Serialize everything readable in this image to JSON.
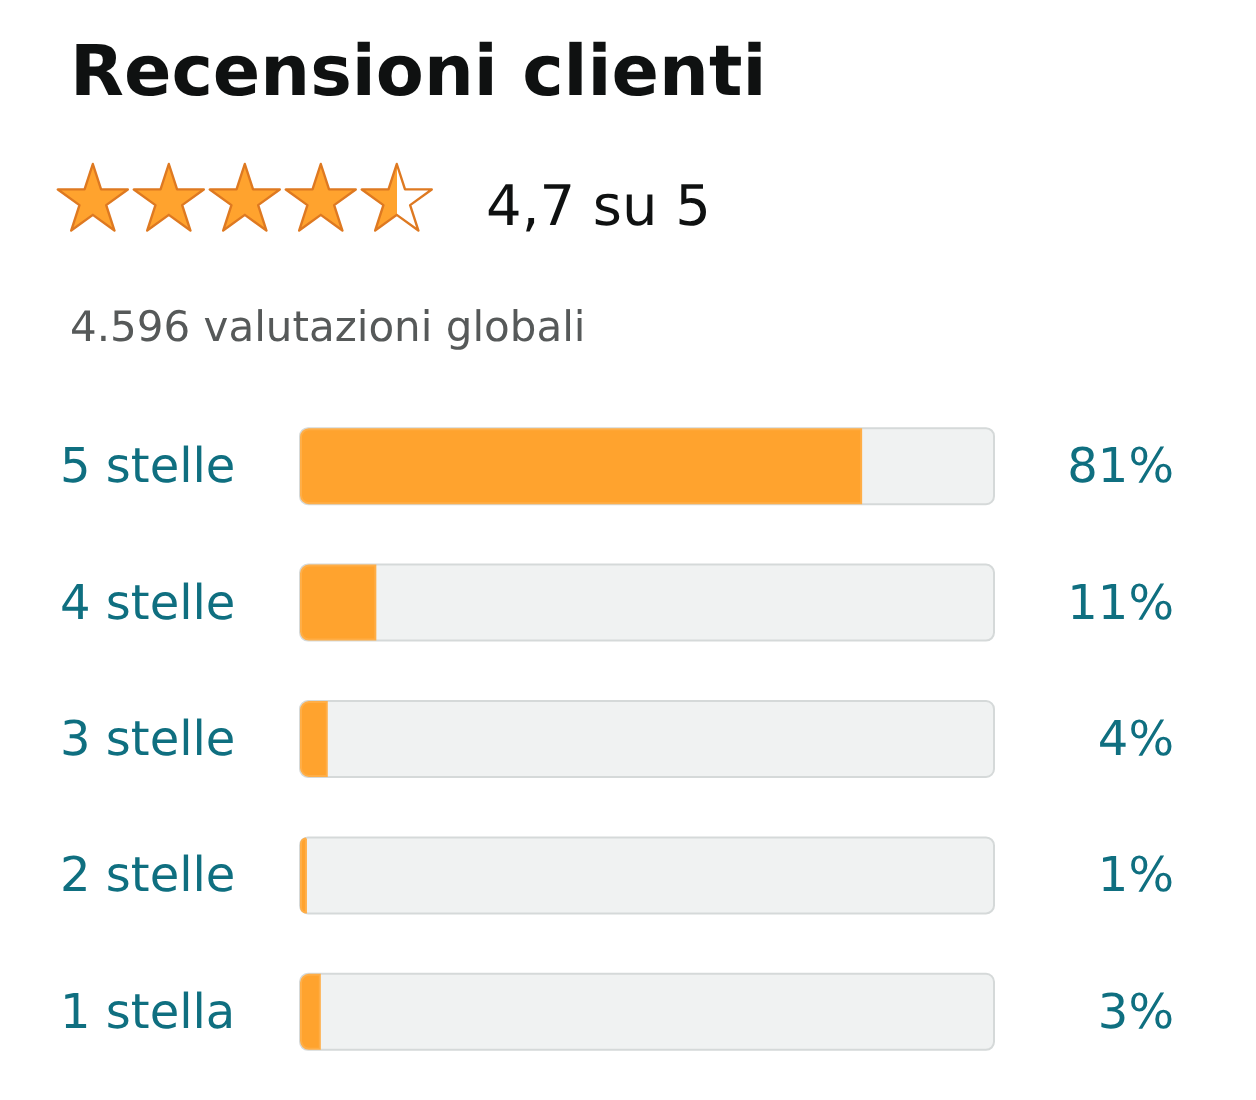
{
  "chart_data": {
    "type": "bar",
    "orientation": "horizontal",
    "title": "Recensioni clienti",
    "subtitle": "4,7 su 5",
    "annotations": [
      "4.596 valutazioni globali"
    ],
    "categories": [
      "5 stelle",
      "4 stelle",
      "3 stelle",
      "2 stelle",
      "1 stella"
    ],
    "values": [
      81,
      11,
      4,
      1,
      3
    ],
    "value_labels": [
      "81%",
      "11%",
      "4%",
      "1%",
      "3%"
    ],
    "color": "#ffa32e",
    "xlim": [
      0,
      100
    ],
    "tick_labels": "y"
  }
}
